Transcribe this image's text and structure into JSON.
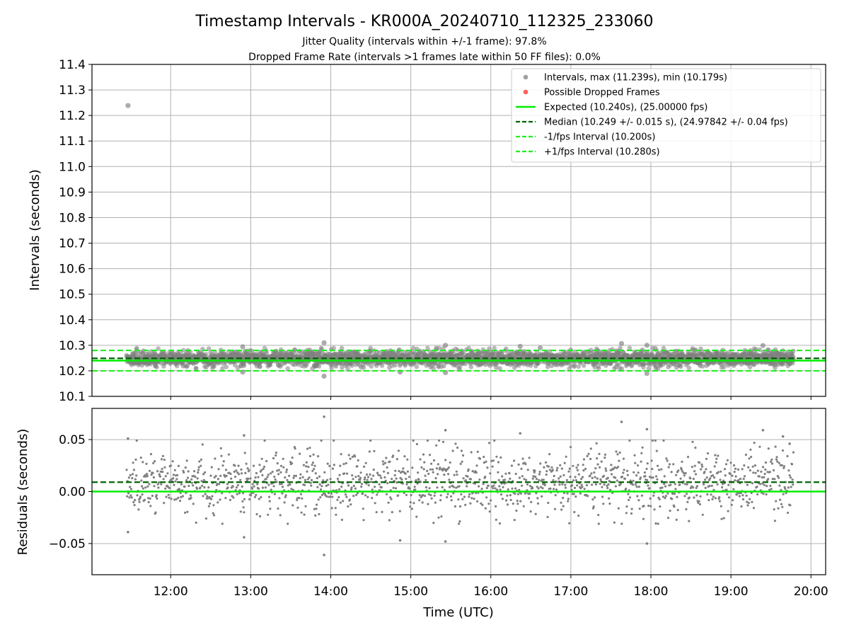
{
  "title": "Timestamp Intervals - KR000A_20240710_112325_233060",
  "subtitle_jitter": "Jitter Quality (intervals within +/-1 frame): 97.8%",
  "subtitle_dropped": "Dropped Frame Rate (intervals >1 frames late within 50 FF files): 0.0%",
  "colors": {
    "points": "#808080",
    "dropped": "#ff0000",
    "expected": "#00ee00",
    "median": "#006400",
    "interval": "#22ee22",
    "grid": "#b0b0b0"
  },
  "chart_data": [
    {
      "type": "scatter",
      "name": "intervals",
      "ylabel": "Intervals (seconds)",
      "xlim": [
        "11:01",
        "20:11"
      ],
      "ylim": [
        10.1,
        11.4
      ],
      "yticks": [
        "10.1",
        "10.2",
        "10.3",
        "10.4",
        "10.5",
        "10.6",
        "10.7",
        "10.8",
        "10.9",
        "11.0",
        "11.1",
        "11.2",
        "11.3",
        "11.4"
      ],
      "grid": true,
      "legend_position": "top-right",
      "legend": [
        {
          "label": "Intervals, max (11.239s), min (10.179s)",
          "kind": "marker",
          "color": "#a0a0a0"
        },
        {
          "label": "Possible Dropped Frames",
          "kind": "marker",
          "color": "#ff6060"
        },
        {
          "label": "Expected (10.240s), (25.00000 fps)",
          "kind": "line",
          "color": "#00ee00"
        },
        {
          "label": "Median (10.249 +/- 0.015 s), (24.97842 +/- 0.04 fps)",
          "kind": "dash",
          "color": "#006400"
        },
        {
          "label": "-1/fps Interval (10.200s)",
          "kind": "dash",
          "color": "#22ee22"
        },
        {
          "label": "+1/fps Interval (10.280s)",
          "kind": "dash",
          "color": "#22ee22"
        }
      ],
      "reference_lines": {
        "expected": 10.24,
        "median": 10.249,
        "minus_interval": 10.2,
        "plus_interval": 10.28
      },
      "data_span": [
        "11:27",
        "19:47"
      ],
      "median": 10.249,
      "spread_std": 0.015,
      "outliers": [
        {
          "x": "11:28",
          "y": 11.239
        },
        {
          "x": "13:55",
          "y": 10.31
        },
        {
          "x": "13:55",
          "y": 10.179
        },
        {
          "x": "15:26",
          "y": 10.3
        },
        {
          "x": "15:26",
          "y": 10.193
        },
        {
          "x": "17:38",
          "y": 10.307
        },
        {
          "x": "17:57",
          "y": 10.3
        },
        {
          "x": "17:57",
          "y": 10.19
        },
        {
          "x": "19:24",
          "y": 10.299
        },
        {
          "x": "12:54",
          "y": 10.294
        },
        {
          "x": "12:54",
          "y": 10.195
        },
        {
          "x": "14:52",
          "y": 10.195
        },
        {
          "x": "16:22",
          "y": 10.296
        },
        {
          "x": "16:37",
          "y": 10.29
        }
      ]
    },
    {
      "type": "scatter",
      "name": "residuals",
      "ylabel": "Residuals (seconds)",
      "xlabel": "Time (UTC)",
      "xlim": [
        "11:01",
        "20:11"
      ],
      "ylim": [
        -0.08,
        0.08
      ],
      "yticks": [
        {
          "value": 0.05,
          "label": "0.05"
        },
        {
          "value": 0.0,
          "label": "0.00"
        },
        {
          "value": -0.05,
          "label": "−0.05"
        }
      ],
      "xticks": [
        "12:00",
        "13:00",
        "14:00",
        "15:00",
        "16:00",
        "17:00",
        "18:00",
        "19:00",
        "20:00"
      ],
      "grid": true,
      "expected_line": 0.0,
      "median_line": 0.009,
      "data_span": [
        "11:27",
        "19:47"
      ],
      "spread_std": 0.016,
      "outliers": [
        {
          "x": "11:28",
          "y": 0.051
        },
        {
          "x": "11:28",
          "y": -0.039
        },
        {
          "x": "12:55",
          "y": 0.054
        },
        {
          "x": "12:55",
          "y": -0.044
        },
        {
          "x": "13:55",
          "y": 0.072
        },
        {
          "x": "13:55",
          "y": -0.061
        },
        {
          "x": "14:52",
          "y": -0.047
        },
        {
          "x": "15:26",
          "y": 0.059
        },
        {
          "x": "15:26",
          "y": -0.048
        },
        {
          "x": "16:22",
          "y": 0.056
        },
        {
          "x": "17:38",
          "y": 0.067
        },
        {
          "x": "17:57",
          "y": 0.06
        },
        {
          "x": "17:57",
          "y": -0.05
        },
        {
          "x": "19:24",
          "y": 0.059
        },
        {
          "x": "19:39",
          "y": 0.053
        },
        {
          "x": "19:44",
          "y": 0.046
        }
      ]
    }
  ]
}
